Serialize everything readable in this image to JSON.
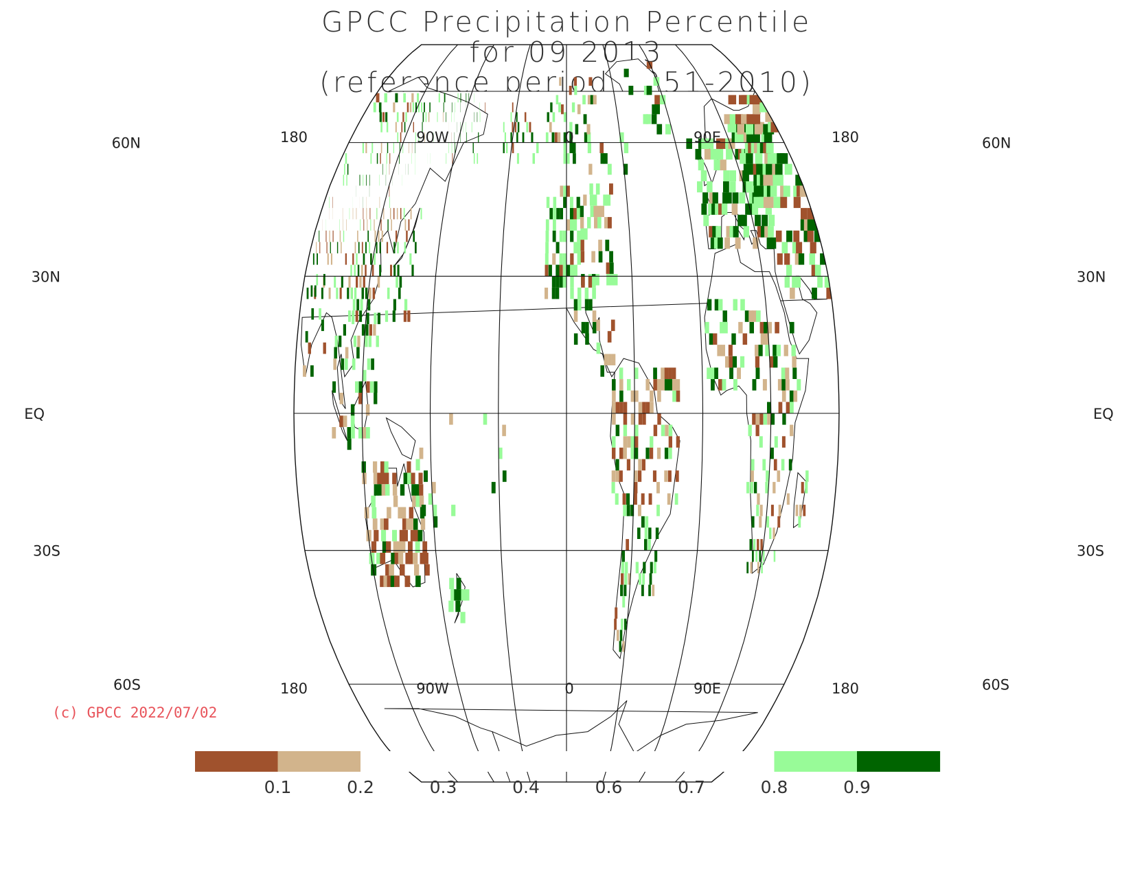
{
  "title": {
    "line1": "GPCC Precipitation Percentile",
    "line2": "for 09 2013",
    "line3": "(reference period 1951-2010)"
  },
  "credit": "(c) GPCC 2022/07/02",
  "map": {
    "projection": "robinson",
    "lon_labels_top": [
      "180",
      "90W",
      "0",
      "90E",
      "180"
    ],
    "lon_labels_bottom": [
      "180",
      "90W",
      "0",
      "90E",
      "180"
    ],
    "lat_labels_left": [
      "60N",
      "30N",
      "EQ",
      "30S",
      "60S"
    ],
    "lat_labels_right": [
      "60N",
      "30N",
      "EQ",
      "30S",
      "60S"
    ]
  },
  "legend": {
    "colors": [
      "#a0522d",
      "#d2b48c",
      "#ffffff",
      "#ffffff",
      "#ffffff",
      "#ffffff",
      "#ffffff",
      "#98fb98",
      "#006400"
    ],
    "labels": [
      "0.1",
      "0.2",
      "0.3",
      "0.4",
      "0.6",
      "0.7",
      "0.8",
      "0.9"
    ]
  },
  "palette": {
    "very_dry": "#a0522d",
    "dry": "#d2b48c",
    "wet": "#98fb98",
    "very_wet": "#006400",
    "coast": "#111111",
    "credit": "#e8535a"
  }
}
